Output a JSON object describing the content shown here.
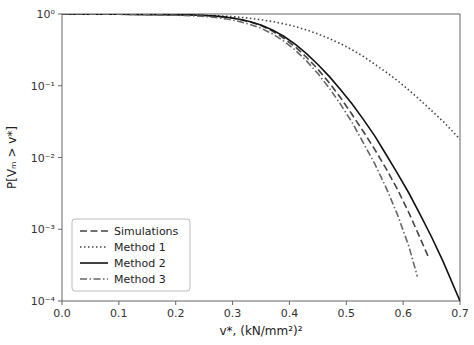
{
  "chart_data": {
    "type": "line",
    "xlabel": "v*, (kN/mm²)²",
    "ylabel": "P[Vₘ > v*]",
    "log": "y",
    "grid": false,
    "legend": "lower left",
    "xlim": [
      0,
      0.7
    ],
    "xticks": [
      {
        "value": 0,
        "label": "0.0"
      },
      0.1,
      0.2,
      0.3,
      0.4,
      0.5,
      0.6,
      0.7
    ],
    "ylim": [
      0.0001,
      1
    ],
    "yticks": [
      {
        "value": 0.0001,
        "label": "10⁻⁴"
      },
      {
        "value": 0.001,
        "label": "10⁻³"
      },
      {
        "value": 0.01,
        "label": "10⁻²"
      },
      {
        "value": 0.1,
        "label": "10⁻¹"
      },
      {
        "value": 1,
        "label": "10⁰"
      }
    ],
    "series": [
      {
        "name": "Simulations",
        "color": "#444444",
        "line_style": "dashed",
        "x": [
          0.0,
          0.01,
          0.03,
          0.06,
          0.1,
          0.14,
          0.18,
          0.21,
          0.23,
          0.25,
          0.27,
          0.29,
          0.31,
          0.33,
          0.35,
          0.37,
          0.39,
          0.41,
          0.43,
          0.45,
          0.47,
          0.49,
          0.51,
          0.53,
          0.55,
          0.57,
          0.59,
          0.61,
          0.63,
          0.645
        ],
        "values": [
          1.0,
          0.999,
          0.998,
          0.996,
          0.992,
          0.987,
          0.981,
          0.975,
          0.968,
          0.955,
          0.935,
          0.9,
          0.85,
          0.78,
          0.69,
          0.58,
          0.46,
          0.35,
          0.25,
          0.17,
          0.11,
          0.068,
          0.04,
          0.023,
          0.013,
          0.007,
          0.0036,
          0.0017,
          0.00075,
          0.0004
        ]
      },
      {
        "name": "Method 1",
        "color": "#444444",
        "line_style": "dotted",
        "x": [
          0.0,
          0.01,
          0.03,
          0.06,
          0.1,
          0.14,
          0.18,
          0.21,
          0.23,
          0.25,
          0.27,
          0.29,
          0.31,
          0.33,
          0.35,
          0.37,
          0.39,
          0.41,
          0.43,
          0.45,
          0.47,
          0.49,
          0.51,
          0.53,
          0.55,
          0.57,
          0.59,
          0.61,
          0.63,
          0.65,
          0.67,
          0.7
        ],
        "values": [
          1.0,
          0.999,
          0.998,
          0.996,
          0.992,
          0.988,
          0.982,
          0.977,
          0.972,
          0.963,
          0.95,
          0.93,
          0.905,
          0.872,
          0.833,
          0.785,
          0.73,
          0.668,
          0.6,
          0.528,
          0.456,
          0.385,
          0.318,
          0.256,
          0.2,
          0.155,
          0.118,
          0.087,
          0.063,
          0.045,
          0.032,
          0.018
        ]
      },
      {
        "name": "Method 2",
        "color": "#111111",
        "line_style": "solid",
        "x": [
          0.0,
          0.01,
          0.03,
          0.06,
          0.1,
          0.14,
          0.18,
          0.21,
          0.23,
          0.25,
          0.27,
          0.29,
          0.31,
          0.33,
          0.35,
          0.37,
          0.39,
          0.41,
          0.43,
          0.45,
          0.47,
          0.49,
          0.51,
          0.53,
          0.55,
          0.57,
          0.59,
          0.61,
          0.63,
          0.65,
          0.67,
          0.7
        ],
        "values": [
          1.0,
          0.999,
          0.998,
          0.996,
          0.992,
          0.987,
          0.981,
          0.975,
          0.968,
          0.955,
          0.935,
          0.9,
          0.85,
          0.785,
          0.7,
          0.6,
          0.49,
          0.38,
          0.28,
          0.198,
          0.135,
          0.088,
          0.056,
          0.034,
          0.02,
          0.011,
          0.006,
          0.0032,
          0.0016,
          0.00078,
          0.00036,
          0.0001
        ]
      },
      {
        "name": "Method 3",
        "color": "#666666",
        "line_style": "dashdot",
        "x": [
          0.0,
          0.01,
          0.03,
          0.06,
          0.1,
          0.14,
          0.18,
          0.21,
          0.23,
          0.25,
          0.27,
          0.29,
          0.31,
          0.33,
          0.35,
          0.37,
          0.39,
          0.41,
          0.43,
          0.45,
          0.47,
          0.49,
          0.51,
          0.53,
          0.55,
          0.57,
          0.59,
          0.61,
          0.625
        ],
        "values": [
          1.0,
          0.999,
          0.998,
          0.996,
          0.99,
          0.982,
          0.97,
          0.957,
          0.945,
          0.925,
          0.893,
          0.85,
          0.793,
          0.72,
          0.633,
          0.53,
          0.42,
          0.315,
          0.222,
          0.148,
          0.093,
          0.055,
          0.031,
          0.016,
          0.0082,
          0.0038,
          0.0016,
          0.00058,
          0.00022
        ]
      }
    ]
  }
}
